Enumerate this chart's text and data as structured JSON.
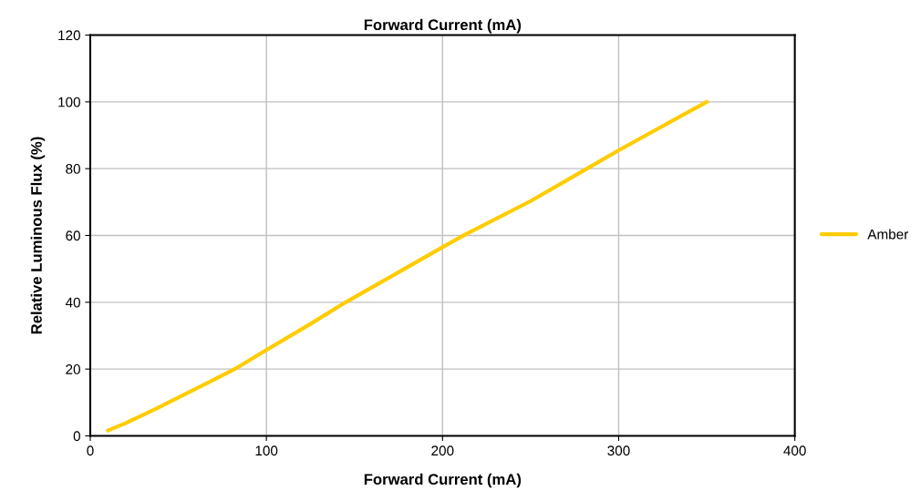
{
  "chart_data": {
    "type": "line",
    "title": "Forward Current (mA)",
    "xlabel": "Forward Current (mA)",
    "ylabel": "Relative Luminous Flux (%)",
    "series": [
      {
        "name": "Amber",
        "color": "#ffcc00",
        "x": [
          10,
          20,
          38,
          50,
          64,
          82,
          100,
          125,
          145,
          200,
          213,
          250,
          282,
          300,
          350
        ],
        "values": [
          1.6,
          3.8,
          8.3,
          11.5,
          15.2,
          20,
          25.7,
          33.5,
          40,
          56.5,
          60.3,
          70.3,
          80,
          85.5,
          100
        ]
      }
    ],
    "xlim": [
      0,
      400
    ],
    "xticks": [
      0,
      100,
      200,
      300,
      400
    ],
    "ylim": [
      0,
      120
    ],
    "yticks": [
      0,
      20,
      40,
      60,
      80,
      100,
      120
    ],
    "grid": true,
    "legend": "right",
    "marker": "none",
    "line_style": "solid"
  }
}
